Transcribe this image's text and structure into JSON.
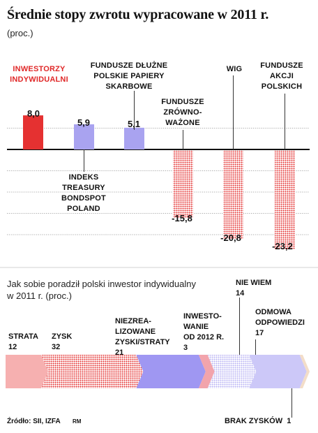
{
  "title": "Średnie stopy zwrotu wypracowane w 2011 r.",
  "subtitle": "(proc.)",
  "chart_data": [
    {
      "type": "bar",
      "categories": [
        "INWESTORZY INDYWIDUALNI",
        "INDEKS TREASURY BONDSPOT POLAND",
        "FUNDUSZE DŁUŻNE POLSKIE PAPIERY SKARBOWE",
        "FUNDUSZE ZRÓWNO-WAŻONE",
        "WIG",
        "FUNDUSZE AKCJI POLSKICH"
      ],
      "values": [
        8.0,
        5.9,
        5.1,
        -15.8,
        -20.8,
        -23.2
      ],
      "value_labels": [
        "8,0",
        "5,9",
        "5,1",
        "-15,8",
        "-20,8",
        "-23,2"
      ],
      "colors": [
        "#e53131",
        "#a9a3f0",
        "#a9a3f0",
        "#e53131",
        "#e53131",
        "#e53131"
      ],
      "patterns": [
        "solid",
        "solid",
        "solid",
        "dotted",
        "dotted",
        "dotted"
      ],
      "ylim": [
        -25,
        10
      ],
      "grid": true
    },
    {
      "type": "bar",
      "subtype": "stacked-horizontal",
      "title": "Jak sobie poradził polski inwestor indywidualny w 2011 r. (proc.)",
      "categories": [
        "STRATA",
        "ZYSK",
        "NIEZREALIZOWANE ZYSKI/STRATY",
        "INWESTOWANIE OD 2012 R.",
        "NIE WIEM",
        "ODMOWA ODPOWIEDZI",
        "BRAK ZYSKÓW"
      ],
      "values": [
        12,
        32,
        21,
        3,
        14,
        17,
        1
      ],
      "colors": [
        "#f6b0b0",
        "#f4a0a8",
        "#9f97f2",
        "#f2a4ac",
        "#c7c2f6",
        "#ccc8f8",
        "#f3ddc8"
      ]
    }
  ],
  "top_labels": {
    "investors": [
      "INWESTORZY",
      "INDYWIDUALNI"
    ],
    "debt_funds": [
      "FUNDUSZE DŁUŻNE",
      "POLSKIE PAPIERY",
      "SKARBOWE"
    ],
    "balanced": [
      "FUNDUSZE",
      "ZRÓWNO-",
      "WAŻONE"
    ],
    "wig": [
      "WIG"
    ],
    "equity": [
      "FUNDUSZE",
      "AKCJI",
      "POLSKICH"
    ],
    "treasury": [
      "INDEKS",
      "TREASURY",
      "BONDSPOT",
      "POLAND"
    ]
  },
  "section2": {
    "line1": "Jak sobie poradził polski inwestor indywidualny",
    "line2": "w 2011 r. (proc.)"
  },
  "segments": {
    "strata": {
      "name": "STRATA",
      "value": "12"
    },
    "zysk": {
      "name": "ZYSK",
      "value": "32"
    },
    "niezreal": {
      "l1": "NIEZREA-",
      "l2": "LIZOWANE",
      "l3": "ZYSKI/STRATY",
      "value": "21"
    },
    "inwest": {
      "l1": "INWESTO-",
      "l2": "WANIE",
      "l3": "OD 2012 R.",
      "value": "3"
    },
    "niewiem": {
      "name": "NIE WIEM",
      "value": "14"
    },
    "odmowa": {
      "l1": "ODMOWA",
      "l2": "ODPOWIEDZI",
      "value": "17"
    },
    "brak": {
      "name": "BRAK ZYSKÓW",
      "value": "1"
    }
  },
  "source": "Źródło: SII, IZFA",
  "credit": "RM"
}
